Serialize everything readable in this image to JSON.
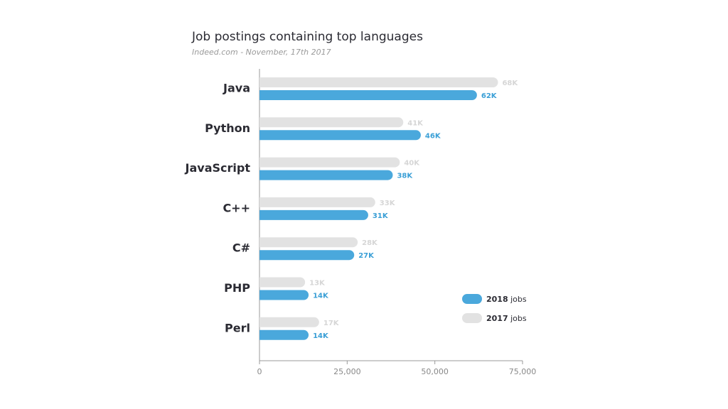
{
  "chart_data": {
    "type": "hbar",
    "title": "Job postings containing top languages",
    "subtitle": "Indeed.com - November, 17th 2017",
    "categories": [
      "Java",
      "Python",
      "JavaScript",
      "C++",
      "C#",
      "PHP",
      "Perl"
    ],
    "series": [
      {
        "name": "2018 jobs",
        "color": "#4aa8dc",
        "label_color": "#3a9fd6",
        "values": [
          62000,
          46000,
          38000,
          31000,
          27000,
          14000,
          14000
        ],
        "value_labels": [
          "62K",
          "46K",
          "38K",
          "31K",
          "27K",
          "14K",
          "14K"
        ]
      },
      {
        "name": "2017 jobs",
        "color": "#e2e2e2",
        "label_color": "#d6d6d6",
        "values": [
          68000,
          41000,
          40000,
          33000,
          28000,
          13000,
          17000
        ],
        "value_labels": [
          "68K",
          "41K",
          "40K",
          "33K",
          "28K",
          "13K",
          "17K"
        ]
      }
    ],
    "xlim": [
      0,
      75000
    ],
    "xticks": [
      0,
      {
        "value": 25000,
        "label": "25,000"
      },
      {
        "value": 50000,
        "label": "50,000"
      },
      {
        "value": 75000,
        "label": "75,000"
      }
    ],
    "legend": "lower right"
  }
}
